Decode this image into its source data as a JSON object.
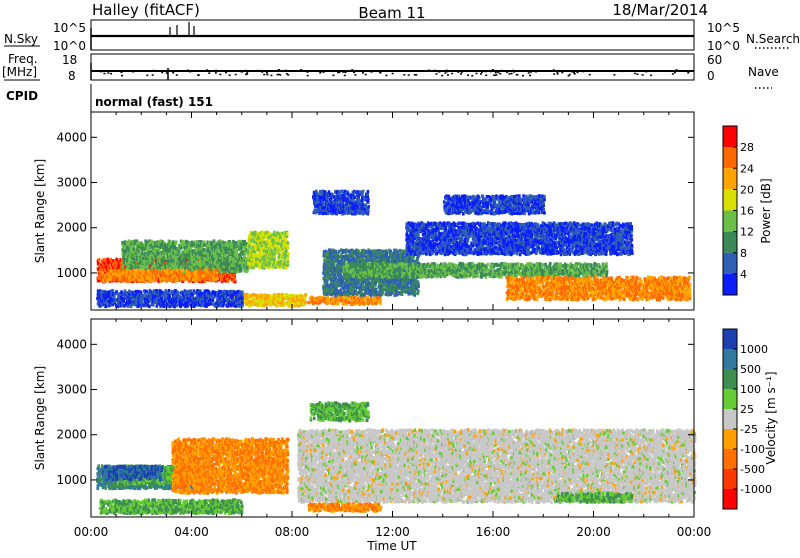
{
  "header": {
    "station": "Halley (fitACF)",
    "beam": "Beam 11",
    "date": "18/Mar/2014"
  },
  "top_panels": {
    "nsky_label": "N.Sky",
    "nsky_ticks": [
      "10^5",
      "10^0"
    ],
    "nsearch_label": "N.Search",
    "nsearch_ticks": [
      "10^5",
      "10^0"
    ],
    "freq_label": "Freq.",
    "freq_unit": "[MHz]",
    "freq_ticks": [
      "18",
      "8"
    ],
    "cpid_label": "CPID",
    "nave_label": "Nave",
    "nave_ticks": [
      "60",
      "0"
    ],
    "cpid_text": "normal (fast) 151"
  },
  "chart_data": [
    {
      "type": "heatmap",
      "name": "power",
      "ylabel": "Slant Range [km]",
      "ylim": [
        180,
        4560
      ],
      "yticks": [
        "1000",
        "2000",
        "3000",
        "4000"
      ],
      "xlabel": "Time UT",
      "xlim": [
        0,
        24
      ],
      "xticks": [
        "00:00",
        "04:00",
        "08:00",
        "12:00",
        "16:00",
        "20:00",
        "00:00"
      ],
      "colorbar_label": "Power [dB]",
      "colorbar_ticks": [
        "28",
        "24",
        "20",
        "16",
        "12",
        "8",
        "4"
      ],
      "colorbar_colors": [
        "#ff0000",
        "#ff6a00",
        "#ffa300",
        "#d8e000",
        "#6cc04a",
        "#3a8a57",
        "#2f5fb4",
        "#0a1dfa"
      ],
      "regions": [
        {
          "t": [
            0.2,
            5.7
          ],
          "r": [
            800,
            1300
          ],
          "value": 28
        },
        {
          "t": [
            1.2,
            6.2
          ],
          "r": [
            1000,
            1700
          ],
          "value": 12
        },
        {
          "t": [
            0.3,
            5.0
          ],
          "r": [
            820,
            1060
          ],
          "value": 24
        },
        {
          "t": [
            6.2,
            7.8
          ],
          "r": [
            1100,
            1900
          ],
          "value": 16
        },
        {
          "t": [
            5.6,
            8.5
          ],
          "r": [
            260,
            520
          ],
          "value": 20
        },
        {
          "t": [
            8.6,
            11.5
          ],
          "r": [
            300,
            460
          ],
          "value": 24
        },
        {
          "t": [
            9.2,
            13.0
          ],
          "r": [
            500,
            1500
          ],
          "value": 8
        },
        {
          "t": [
            10.0,
            20.5
          ],
          "r": [
            900,
            1200
          ],
          "value": 12
        },
        {
          "t": [
            12.5,
            21.5
          ],
          "r": [
            1400,
            2100
          ],
          "value": 4
        },
        {
          "t": [
            16.5,
            23.8
          ],
          "r": [
            400,
            900
          ],
          "value": 24
        },
        {
          "t": [
            8.8,
            11.0
          ],
          "r": [
            2300,
            2800
          ],
          "value": 4
        },
        {
          "t": [
            14.0,
            18.0
          ],
          "r": [
            2300,
            2700
          ],
          "value": 4
        },
        {
          "t": [
            0.2,
            6.0
          ],
          "r": [
            250,
            600
          ],
          "value": 4
        }
      ]
    },
    {
      "type": "heatmap",
      "name": "velocity",
      "ylabel": "Slant Range [km]",
      "ylim": [
        180,
        4560
      ],
      "yticks": [
        "1000",
        "2000",
        "3000",
        "4000"
      ],
      "xlabel": "Time UT",
      "xlim": [
        0,
        24
      ],
      "xticks": [
        "00:00",
        "04:00",
        "08:00",
        "12:00",
        "16:00",
        "20:00",
        "00:00"
      ],
      "colorbar_label": "Velocity [m s⁻¹]",
      "colorbar_ticks": [
        "1000",
        "500",
        "100",
        "25",
        "-25",
        "-100",
        "-500",
        "-1000"
      ],
      "colorbar_colors": [
        "#1e3fb0",
        "#2f7a9e",
        "#3c8f4f",
        "#66cc33",
        "#c8c8c8",
        "#ffa000",
        "#ff7000",
        "#ff3a00",
        "#ff0000"
      ],
      "regions": [
        {
          "t": [
            0.2,
            4.2
          ],
          "r": [
            800,
            1300
          ],
          "value": 500
        },
        {
          "t": [
            1.0,
            4.5
          ],
          "r": [
            900,
            1300
          ],
          "value": 100
        },
        {
          "t": [
            3.2,
            7.8
          ],
          "r": [
            700,
            1900
          ],
          "value": -100
        },
        {
          "t": [
            0.4,
            2.8
          ],
          "r": [
            1000,
            1300
          ],
          "value": 1000
        },
        {
          "t": [
            8.2,
            24.0
          ],
          "r": [
            500,
            2100
          ],
          "value": 0
        },
        {
          "t": [
            18.5,
            21.5
          ],
          "r": [
            500,
            700
          ],
          "value": 100
        },
        {
          "t": [
            8.7,
            11.0
          ],
          "r": [
            2300,
            2700
          ],
          "value": 100
        },
        {
          "t": [
            0.3,
            6.0
          ],
          "r": [
            250,
            550
          ],
          "value": 100
        },
        {
          "t": [
            8.6,
            11.5
          ],
          "r": [
            300,
            460
          ],
          "value": -100
        }
      ]
    }
  ]
}
